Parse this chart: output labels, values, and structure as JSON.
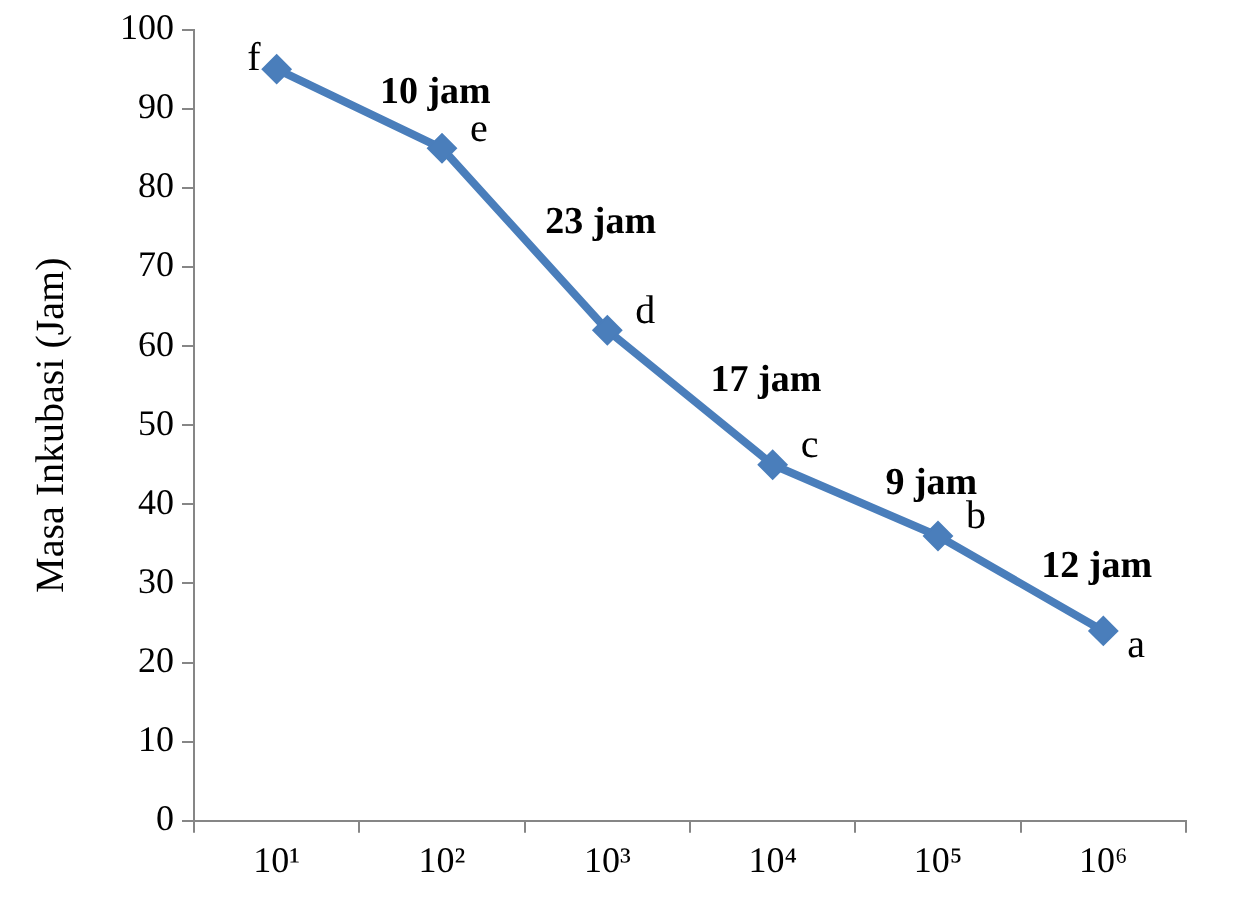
{
  "chart_data": {
    "type": "line",
    "ylabel": "Masa Inkubasi (Jam)",
    "categories": [
      "10¹",
      "10²",
      "10³",
      "10⁴",
      "10⁵",
      "10⁶"
    ],
    "series": [
      {
        "color": "#4a7ebb",
        "values": [
          95,
          85,
          62,
          45,
          36,
          24
        ]
      }
    ],
    "ylim": [
      0,
      100
    ],
    "yticks": [
      0,
      10,
      20,
      30,
      40,
      50,
      60,
      70,
      80,
      90,
      100
    ],
    "grid": false,
    "legend": false,
    "marker": "diamond",
    "line_style": "solid",
    "annotations": [
      {
        "text": "f",
        "x": "10¹",
        "y": 95
      },
      {
        "text": "e",
        "x": "10²",
        "y": 85
      },
      {
        "text": "d",
        "x": "10³",
        "y": 62
      },
      {
        "text": "c",
        "x": "10⁴",
        "y": 45
      },
      {
        "text": "b",
        "x": "10⁵",
        "y": 36
      },
      {
        "text": "a",
        "x": "10⁶",
        "y": 24
      },
      "10 jam",
      "23 jam",
      "17 jam",
      "9 jam",
      "12 jam"
    ]
  }
}
